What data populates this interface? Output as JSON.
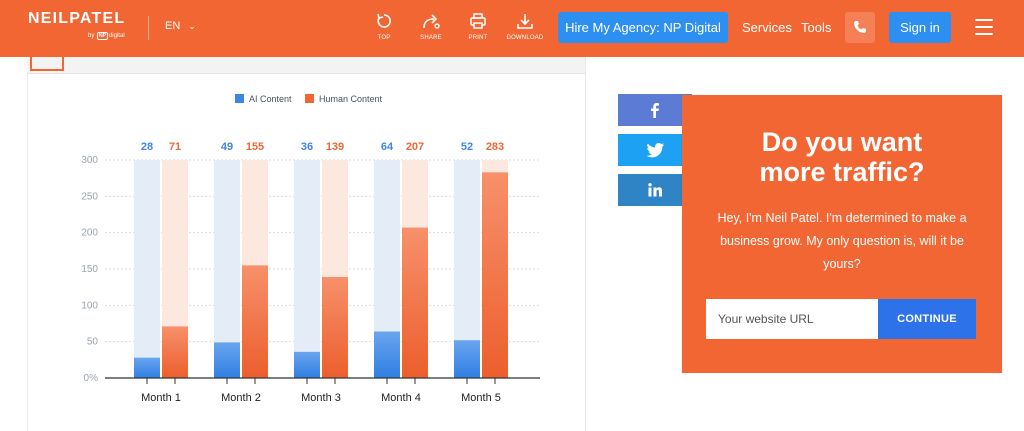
{
  "header": {
    "logo_text": "NEILPATEL",
    "logo_by": "by",
    "logo_np": "NP",
    "logo_sub": "digital",
    "language": "EN",
    "tools": [
      {
        "label": "TOP",
        "icon": "top-icon"
      },
      {
        "label": "SHARE",
        "icon": "share-icon"
      },
      {
        "label": "PRINT",
        "icon": "print-icon"
      },
      {
        "label": "DOWNLOAD",
        "icon": "download-icon"
      }
    ],
    "hire_button": "Hire My Agency: NP Digital",
    "nav": [
      "Services",
      "Tools"
    ],
    "phone_icon": "phone-icon",
    "signin_button": "Sign in",
    "menu_icon": "hamburger-icon",
    "colors": {
      "brand_orange": "#f26633",
      "button_blue": "#2d8ff0"
    }
  },
  "chart_data": {
    "type": "bar",
    "categories": [
      "Month 1",
      "Month 2",
      "Month 3",
      "Month 4",
      "Month 5"
    ],
    "series": [
      {
        "name": "AI Content",
        "values": [
          28,
          49,
          36,
          64,
          52
        ],
        "color": "#3d86e8"
      },
      {
        "name": "Human Content",
        "values": [
          71,
          155,
          139,
          207,
          283
        ],
        "color": "#f26633"
      }
    ],
    "y_ticks": [
      "0%",
      "50",
      "100",
      "150",
      "200",
      "250",
      "300"
    ],
    "ylim": [
      0,
      300
    ],
    "legend_position": "top-center",
    "grid": true
  },
  "share": [
    {
      "icon": "facebook-icon",
      "color": "#5b7bd5"
    },
    {
      "icon": "twitter-icon",
      "color": "#1da1f2"
    },
    {
      "icon": "linkedin-icon",
      "color": "#2f84c6"
    }
  ],
  "cta": {
    "title_line1": "Do you want",
    "title_line2": "more traffic?",
    "text": "Hey, I'm Neil Patel. I'm determined to make a business grow. My only question is, will it be yours?",
    "input_placeholder": "Your website URL",
    "button": "CONTINUE"
  }
}
